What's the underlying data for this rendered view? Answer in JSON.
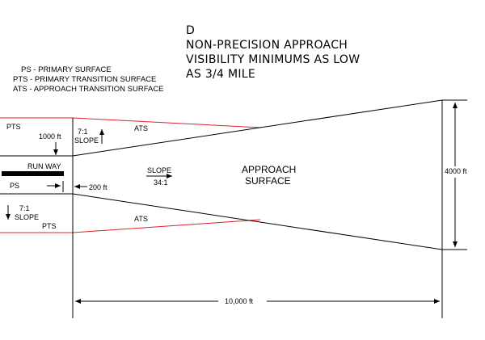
{
  "title": {
    "letter": "D",
    "line1": "NON-PRECISION APPROACH",
    "line2": "VISIBILITY MINIMUMS AS LOW",
    "line3": "AS 3/4 MILE"
  },
  "legend": {
    "ps": "PS - PRIMARY SURFACE",
    "pts": "PTS - PRIMARY TRANSITION SURFACE",
    "ats": "ATS - APPROACH TRANSITION SURFACE"
  },
  "labels": {
    "pts_top": "PTS",
    "pts_bottom": "PTS",
    "ps": "PS",
    "runway": "RUN WAY",
    "ats_top": "ATS",
    "ats_bottom": "ATS",
    "slope_top_ratio": "7:1",
    "slope_top_word": "SLOPE",
    "slope_bottom_ratio": "7:1",
    "slope_bottom_word": "SLOPE",
    "slope_center_word": "SLOPE",
    "slope_center_ratio": "34:1",
    "approach_line1": "APPROACH",
    "approach_line2": "SURFACE"
  },
  "dimensions": {
    "pts_height": "1000 ft",
    "ps_offset": "200 ft",
    "outer_width": "4000 ft",
    "length": "10,000 ft"
  },
  "colors": {
    "ink": "#000000",
    "transition": "#e0202a"
  }
}
